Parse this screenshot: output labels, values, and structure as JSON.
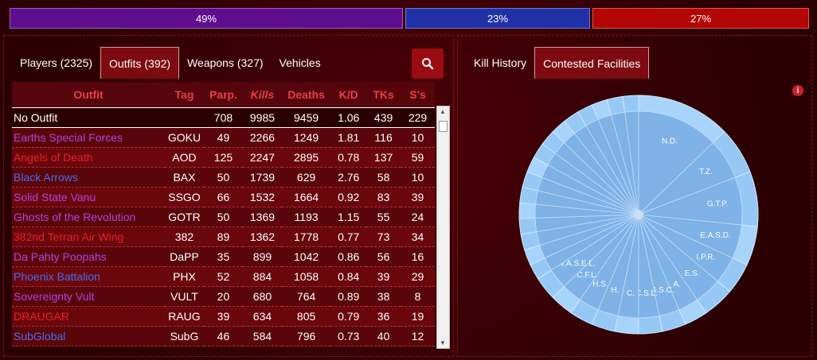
{
  "factions": [
    {
      "name": "vs",
      "label": "49%",
      "value": 49,
      "color": "#5f0d8f"
    },
    {
      "name": "nc",
      "label": "23%",
      "value": 23,
      "color": "#2230a8"
    },
    {
      "name": "tr",
      "label": "27%",
      "value": 27,
      "color": "#b40505"
    }
  ],
  "left_tabs": [
    "Players (2325)",
    "Outfits (392)",
    "Weapons (327)",
    "Vehicles"
  ],
  "right_tabs": [
    "Kill History",
    "Contested Facilities"
  ],
  "table": {
    "headers": [
      "Outfit",
      "Tag",
      "Parp.",
      "Kills",
      "Deaths",
      "K/D",
      "TKs",
      "S's"
    ],
    "rows": [
      {
        "name": "No Outfit",
        "color": "#ffffff",
        "tag": "",
        "parp": "708",
        "kills": "9985",
        "deaths": "9459",
        "kd": "1.06",
        "tks": "439",
        "ss": "229"
      },
      {
        "name": "Earths Special Forces",
        "color": "#b043e0",
        "tag": "GOKU",
        "parp": "49",
        "kills": "2266",
        "deaths": "1249",
        "kd": "1.81",
        "tks": "116",
        "ss": "10"
      },
      {
        "name": "Angels of Death",
        "color": "#e8202a",
        "tag": "AOD",
        "parp": "125",
        "kills": "2247",
        "deaths": "2895",
        "kd": "0.78",
        "tks": "137",
        "ss": "59"
      },
      {
        "name": "Black Arrows",
        "color": "#4a6cf0",
        "tag": "BAX",
        "parp": "50",
        "kills": "1739",
        "deaths": "629",
        "kd": "2.76",
        "tks": "58",
        "ss": "10"
      },
      {
        "name": "Solid State Vanu",
        "color": "#b043e0",
        "tag": "SSGO",
        "parp": "66",
        "kills": "1532",
        "deaths": "1664",
        "kd": "0.92",
        "tks": "83",
        "ss": "39"
      },
      {
        "name": "Ghosts of the Revolution",
        "color": "#b043e0",
        "tag": "GOTR",
        "parp": "50",
        "kills": "1369",
        "deaths": "1193",
        "kd": "1.15",
        "tks": "55",
        "ss": "24"
      },
      {
        "name": "382nd Terran Air Wing",
        "color": "#e8202a",
        "tag": "382",
        "parp": "89",
        "kills": "1362",
        "deaths": "1778",
        "kd": "0.77",
        "tks": "73",
        "ss": "34"
      },
      {
        "name": "Da Pahty Poopahs",
        "color": "#b043e0",
        "tag": "DaPP",
        "parp": "35",
        "kills": "899",
        "deaths": "1042",
        "kd": "0.86",
        "tks": "56",
        "ss": "16"
      },
      {
        "name": "Phoenix Battalion",
        "color": "#4a6cf0",
        "tag": "PHX",
        "parp": "52",
        "kills": "884",
        "deaths": "1058",
        "kd": "0.84",
        "tks": "39",
        "ss": "29"
      },
      {
        "name": "Sovereignty Vult",
        "color": "#b043e0",
        "tag": "VULT",
        "parp": "20",
        "kills": "680",
        "deaths": "764",
        "kd": "0.89",
        "tks": "38",
        "ss": "8"
      },
      {
        "name": "DRAUGAR",
        "color": "#e8202a",
        "tag": "RAUG",
        "parp": "39",
        "kills": "634",
        "deaths": "805",
        "kd": "0.79",
        "tks": "36",
        "ss": "19"
      },
      {
        "name": "SubGlobal",
        "color": "#4a6cf0",
        "tag": "SubG",
        "parp": "46",
        "kills": "584",
        "deaths": "796",
        "kd": "0.73",
        "tks": "40",
        "ss": "12"
      }
    ]
  },
  "info_icon": "i",
  "chart_data": {
    "type": "pie",
    "slices": [
      {
        "label": "N.D.",
        "value": 12
      },
      {
        "label": "T.Z.",
        "value": 6
      },
      {
        "label": "G.T.P.",
        "value": 7
      },
      {
        "label": "E.A.S.D.",
        "value": 5
      },
      {
        "label": "I.P.R.",
        "value": 4
      },
      {
        "label": "E.S.",
        "value": 4
      },
      {
        "label": "A.",
        "value": 3
      },
      {
        "label": "G.S.C.",
        "value": 3
      },
      {
        "label": "C.S.L.",
        "value": 3
      },
      {
        "label": "C.",
        "value": 3
      },
      {
        "label": "H.",
        "value": 3
      },
      {
        "label": "H.S.",
        "value": 3
      },
      {
        "label": "C.F.L.",
        "value": 3
      },
      {
        "label": "W.A.S.E.L.",
        "value": 3
      },
      {
        "label": "",
        "value": 2
      },
      {
        "label": "",
        "value": 2
      },
      {
        "label": "",
        "value": 2
      },
      {
        "label": "",
        "value": 2
      },
      {
        "label": "",
        "value": 2
      },
      {
        "label": "",
        "value": 2
      },
      {
        "label": "",
        "value": 2
      },
      {
        "label": "",
        "value": 2
      },
      {
        "label": "",
        "value": 2
      },
      {
        "label": "",
        "value": 2
      },
      {
        "label": "",
        "value": 2
      },
      {
        "label": "",
        "value": 2
      },
      {
        "label": "",
        "value": 2
      },
      {
        "label": "",
        "value": 2
      },
      {
        "label": "",
        "value": 2
      },
      {
        "label": "",
        "value": 2
      }
    ]
  }
}
